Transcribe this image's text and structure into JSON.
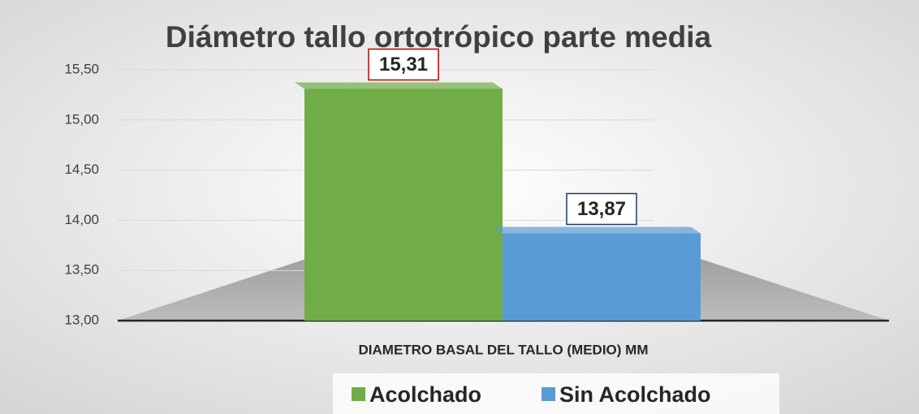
{
  "chart_data": {
    "type": "bar",
    "title": "Diámetro tallo ortotrópico parte media",
    "categories": [
      "DIAMETRO BASAL DEL TALLO (MEDIO) MM"
    ],
    "series": [
      {
        "name": "Acolchado",
        "color": "#70ad47",
        "values": [
          15.31
        ],
        "value_labels": [
          "15,31"
        ]
      },
      {
        "name": "Sin Acolchado",
        "color": "#5b9bd5",
        "values": [
          13.87
        ],
        "value_labels": [
          "13,87"
        ]
      }
    ],
    "ylim": [
      13,
      15.5
    ],
    "yticks": [
      {
        "value": 13,
        "label": "13,00"
      },
      {
        "value": 13.5,
        "label": "13,50"
      },
      {
        "value": 14,
        "label": "14,00"
      },
      {
        "value": 14.5,
        "label": "14,50"
      },
      {
        "value": 15,
        "label": "15,00"
      },
      {
        "value": 15.5,
        "label": "15,50"
      }
    ],
    "grid": true,
    "legend": "bottom"
  }
}
